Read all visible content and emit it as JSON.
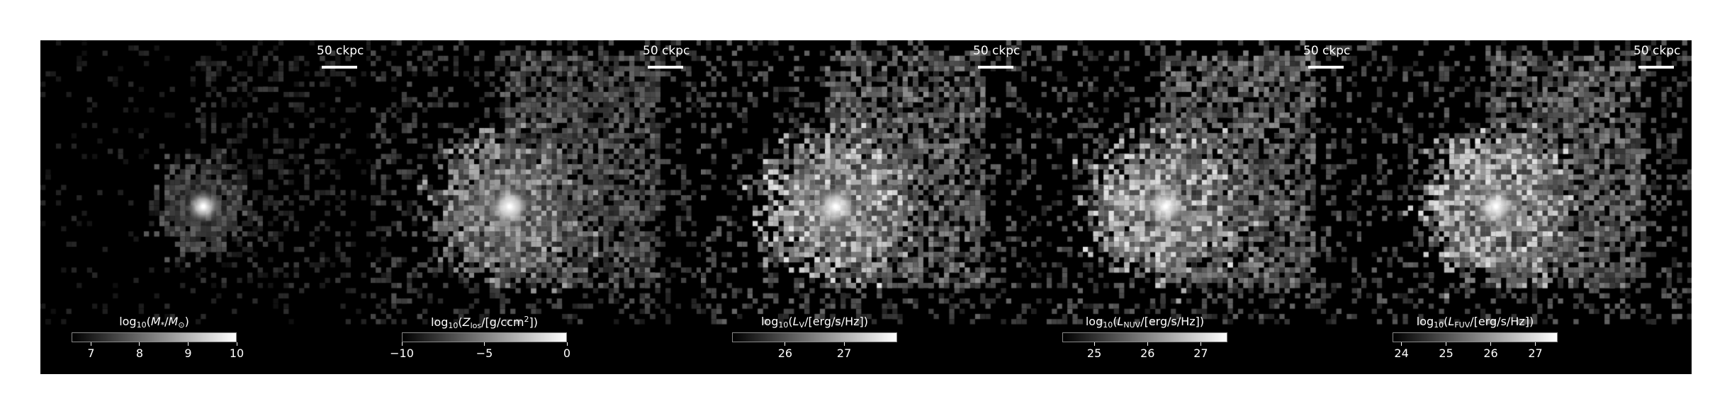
{
  "scalebar_label": "50 ckpc",
  "panels": [
    {
      "id": "stellar-mass",
      "cbar_label_html": "log<sub>10</sub>(<i>M</i><sub>*</sub>/<i>M</i><sub>⊙</sub>)",
      "cbar_range": [
        6.6,
        10
      ],
      "ticks": [
        {
          "label": "7",
          "value": 7
        },
        {
          "label": "8",
          "value": 8
        },
        {
          "label": "9",
          "value": 9
        },
        {
          "label": "10",
          "value": 10
        }
      ]
    },
    {
      "id": "metallicity",
      "cbar_label_html": "log<sub>10</sub>(<i>Z</i><sub>los</sub>/[g/ccm<sup>2</sup>])",
      "cbar_range": [
        -10,
        0
      ],
      "ticks": [
        {
          "label": "−10",
          "value": -10
        },
        {
          "label": "−5",
          "value": -5
        },
        {
          "label": "0",
          "value": 0
        }
      ]
    },
    {
      "id": "luminosity-v",
      "cbar_label_html": "log<sub>10</sub>(<i>L</i><sub>V</sub>/[erg/s/Hz])",
      "cbar_range": [
        25.1,
        27.9
      ],
      "ticks": [
        {
          "label": "26",
          "value": 26
        },
        {
          "label": "27",
          "value": 27
        }
      ]
    },
    {
      "id": "luminosity-nuv",
      "cbar_label_html": "log<sub>10</sub>(<i>L</i><sub>NUV</sub>/[erg/s/Hz])",
      "cbar_range": [
        24.4,
        27.5
      ],
      "ticks": [
        {
          "label": "25",
          "value": 25
        },
        {
          "label": "26",
          "value": 26
        },
        {
          "label": "27",
          "value": 27
        }
      ]
    },
    {
      "id": "luminosity-fuv",
      "cbar_label_html": "log<sub>10</sub>(<i>L</i><sub>FUV</sub>/[erg/s/Hz])",
      "cbar_range": [
        23.8,
        27.5
      ],
      "ticks": [
        {
          "label": "24",
          "value": 24
        },
        {
          "label": "25",
          "value": 25
        },
        {
          "label": "26",
          "value": 26
        },
        {
          "label": "27",
          "value": 27
        }
      ]
    }
  ]
}
